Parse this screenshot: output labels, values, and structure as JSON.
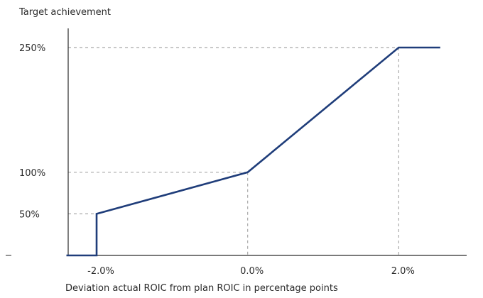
{
  "chart_data": {
    "type": "line",
    "ylabel": "Target achievement",
    "xlabel": "Deviation actual ROIC from plan ROIC in percentage points",
    "xlim": [
      -2.4,
      2.9
    ],
    "ylim": [
      0,
      250
    ],
    "x_ticks": [
      {
        "value": -2.0,
        "label": "-2.0%"
      },
      {
        "value": 0.0,
        "label": "0.0%"
      },
      {
        "value": 2.0,
        "label": "2.0%"
      }
    ],
    "y_ticks": [
      {
        "value": 50,
        "label": "50%"
      },
      {
        "value": 100,
        "label": "100%"
      },
      {
        "value": 250,
        "label": "250%"
      }
    ],
    "series": [
      {
        "points": [
          [
            -2.4,
            0
          ],
          [
            -2.0,
            0
          ],
          [
            -2.0,
            50
          ],
          [
            0.0,
            100
          ],
          [
            2.0,
            250
          ],
          [
            2.55,
            250
          ]
        ],
        "color": "#1f3d7a"
      }
    ],
    "guides": [
      {
        "x": -2.0,
        "y": 50
      },
      {
        "x": 0.0,
        "y": 100
      },
      {
        "x": 2.0,
        "y": 250
      }
    ],
    "guide_color": "#a8a8a8",
    "axis_color": "#2a2a2a",
    "grid": false
  }
}
